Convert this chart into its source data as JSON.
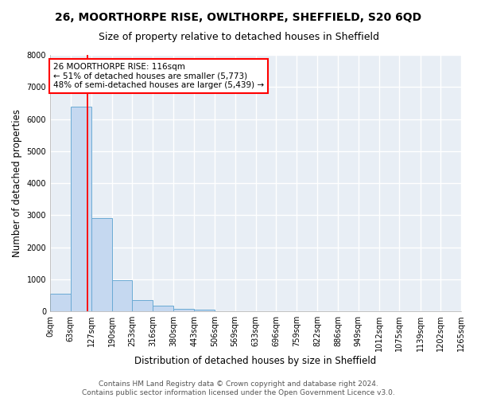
{
  "title": "26, MOORTHORPE RISE, OWLTHORPE, SHEFFIELD, S20 6QD",
  "subtitle": "Size of property relative to detached houses in Sheffield",
  "xlabel": "Distribution of detached houses by size in Sheffield",
  "ylabel": "Number of detached properties",
  "bar_edges": [
    0,
    63,
    127,
    190,
    253,
    316,
    380,
    443,
    506,
    569,
    633,
    696,
    759,
    822,
    886,
    949,
    1012,
    1075,
    1139,
    1202,
    1265
  ],
  "bar_heights": [
    560,
    6380,
    2920,
    970,
    360,
    175,
    80,
    50,
    0,
    0,
    0,
    0,
    0,
    0,
    0,
    0,
    0,
    0,
    0,
    0
  ],
  "bar_color": "#c5d8f0",
  "bar_edge_color": "#6aaad4",
  "property_line_x": 116,
  "property_line_color": "red",
  "annotation_text": "26 MOORTHORPE RISE: 116sqm\n← 51% of detached houses are smaller (5,773)\n48% of semi-detached houses are larger (5,439) →",
  "annotation_box_color": "white",
  "annotation_box_edge_color": "red",
  "ylim": [
    0,
    8000
  ],
  "tick_labels": [
    "0sqm",
    "63sqm",
    "127sqm",
    "190sqm",
    "253sqm",
    "316sqm",
    "380sqm",
    "443sqm",
    "506sqm",
    "569sqm",
    "633sqm",
    "696sqm",
    "759sqm",
    "822sqm",
    "886sqm",
    "949sqm",
    "1012sqm",
    "1075sqm",
    "1139sqm",
    "1202sqm",
    "1265sqm"
  ],
  "footer_line1": "Contains HM Land Registry data © Crown copyright and database right 2024.",
  "footer_line2": "Contains public sector information licensed under the Open Government Licence v3.0.",
  "background_color": "#ffffff",
  "plot_bg_color": "#e8eef5",
  "grid_color": "#ffffff",
  "title_fontsize": 10,
  "subtitle_fontsize": 9,
  "axis_label_fontsize": 8.5,
  "tick_fontsize": 7,
  "footer_fontsize": 6.5,
  "annotation_fontsize": 7.5
}
